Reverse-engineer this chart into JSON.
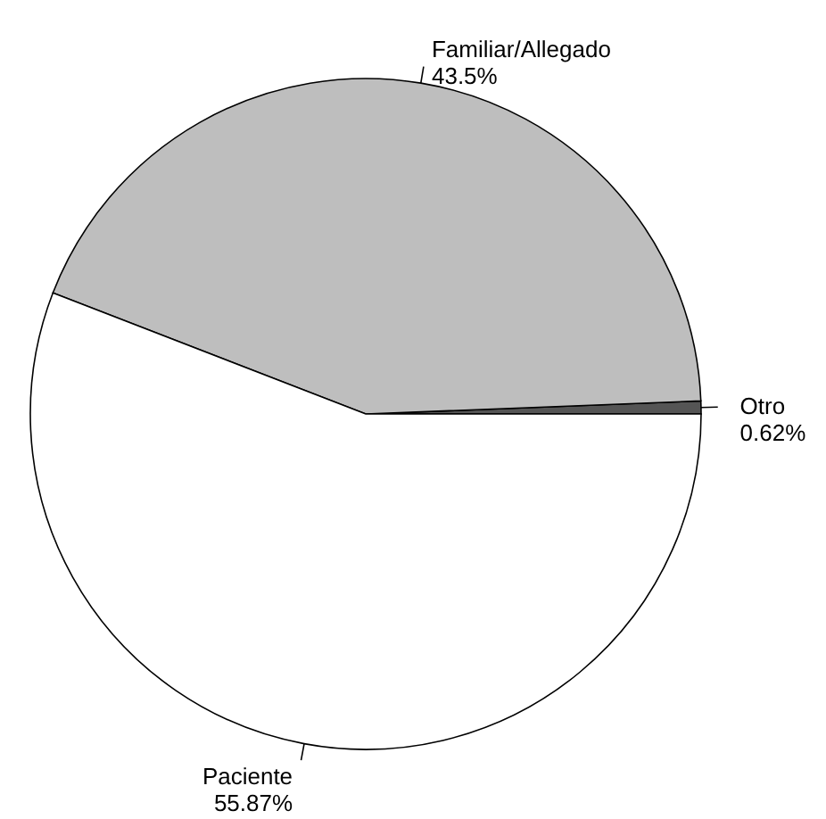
{
  "chart_data": {
    "type": "pie",
    "categories": [
      "Otro",
      "Familiar/Allegado",
      "Paciente"
    ],
    "values": [
      0.62,
      43.5,
      55.87
    ],
    "value_labels": [
      "0.62%",
      "43.5%",
      "55.87%"
    ],
    "colors": [
      "#555555",
      "#bebebe",
      "#ffffff"
    ]
  }
}
